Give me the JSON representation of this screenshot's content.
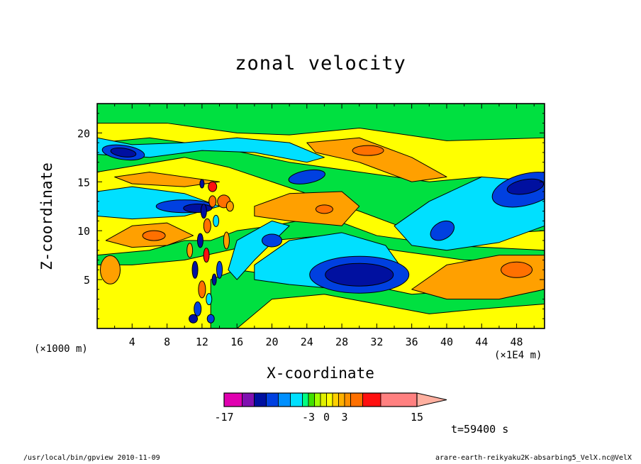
{
  "chart_data": {
    "type": "heatmap",
    "title": "zonal velocity",
    "xlabel": "X-coordinate",
    "ylabel": "Z-coordinate",
    "x_unit_left": "(×1000 m)",
    "x_unit_right": "(×1E4 m)",
    "x_ticks": [
      4,
      8,
      12,
      16,
      20,
      24,
      28,
      32,
      36,
      40,
      44,
      48
    ],
    "y_ticks": [
      5,
      10,
      15,
      20
    ],
    "xlim": [
      0,
      51.2
    ],
    "ylim": [
      0,
      23
    ],
    "colorbar": {
      "levels": [
        -17,
        -14,
        -12,
        -10,
        -8,
        -6,
        -4,
        -3,
        -2,
        -1,
        0,
        1,
        2,
        3,
        4,
        6,
        9,
        12,
        15,
        18
      ],
      "colors": [
        "#e000b0",
        "#8010b0",
        "#0010a0",
        "#0040e0",
        "#0090ff",
        "#00e0ff",
        "#00ff80",
        "#40e000",
        "#a0ff00",
        "#e0f000",
        "#ffff00",
        "#ffd000",
        "#ffb000",
        "#ff9000",
        "#ff7000",
        "#ff1010",
        "#ff8080"
      ],
      "tick_labels": [
        "-17",
        "-3",
        "0",
        "3",
        "15"
      ],
      "tick_values": [
        -17,
        -3,
        0,
        3,
        15
      ]
    },
    "features": [
      {
        "x": 30,
        "z": 5.5,
        "value": -12
      },
      {
        "x": 49,
        "z": 14.2,
        "value": -12
      },
      {
        "x": 40,
        "z": 10,
        "value": -10
      },
      {
        "x": 12,
        "z": 12,
        "value": -12
      },
      {
        "x": 3,
        "z": 18,
        "value": -10
      },
      {
        "x": 31,
        "z": 18.2,
        "value": 8
      },
      {
        "x": 26,
        "z": 12.2,
        "value": 8
      },
      {
        "x": 47,
        "z": 6,
        "value": 8
      },
      {
        "x": 14.5,
        "z": 13,
        "value": 9
      },
      {
        "x": 7,
        "z": 9.5,
        "value": 6
      }
    ]
  },
  "annotations": {
    "time": "t=59400 s",
    "footer_left": "/usr/local/bin/gpview  2010-11-09",
    "footer_right": "arare-earth-reikyaku2K-absarbing5_VelX.nc@VelX"
  }
}
